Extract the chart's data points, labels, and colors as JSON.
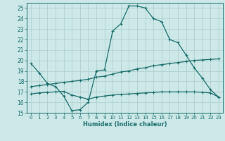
{
  "title": "",
  "xlabel": "Humidex (Indice chaleur)",
  "ylabel": "",
  "bg_color": "#cce8e8",
  "grid_color": "#aacccc",
  "line_color": "#1a6b6b",
  "xlim": [
    -0.5,
    23.5
  ],
  "ylim": [
    15,
    25.5
  ],
  "yticks": [
    15,
    16,
    17,
    18,
    19,
    20,
    21,
    22,
    23,
    24,
    25
  ],
  "xticks": [
    0,
    1,
    2,
    3,
    4,
    5,
    6,
    7,
    8,
    9,
    10,
    11,
    12,
    13,
    14,
    15,
    16,
    17,
    18,
    19,
    20,
    21,
    22,
    23
  ],
  "line1_x": [
    0,
    1,
    2,
    3,
    4,
    5,
    6,
    7,
    8,
    9,
    10,
    11,
    12,
    13,
    14,
    15,
    16,
    17,
    18,
    19,
    20,
    21,
    22,
    23
  ],
  "line1_y": [
    19.7,
    18.8,
    17.8,
    17.5,
    16.6,
    15.2,
    15.3,
    16.0,
    19.0,
    19.1,
    22.8,
    23.5,
    25.2,
    25.2,
    25.0,
    24.0,
    23.7,
    22.0,
    21.7,
    20.5,
    19.3,
    18.3,
    17.2,
    16.5
  ],
  "line2_x": [
    0,
    1,
    2,
    3,
    4,
    5,
    6,
    7,
    8,
    9,
    10,
    11,
    12,
    13,
    14,
    15,
    16,
    17,
    18,
    19,
    20,
    21,
    22,
    23
  ],
  "line2_y": [
    17.5,
    17.6,
    17.7,
    17.8,
    17.9,
    18.0,
    18.1,
    18.2,
    18.4,
    18.5,
    18.7,
    18.9,
    19.0,
    19.2,
    19.3,
    19.5,
    19.6,
    19.7,
    19.8,
    19.9,
    20.0,
    20.05,
    20.1,
    20.15
  ],
  "line3_x": [
    0,
    1,
    2,
    3,
    4,
    5,
    6,
    7,
    8,
    9,
    10,
    11,
    12,
    13,
    14,
    15,
    16,
    17,
    18,
    19,
    20,
    21,
    22,
    23
  ],
  "line3_y": [
    16.8,
    16.9,
    16.95,
    17.0,
    17.05,
    16.7,
    16.5,
    16.3,
    16.5,
    16.6,
    16.7,
    16.75,
    16.8,
    16.85,
    16.9,
    16.95,
    17.0,
    17.0,
    17.0,
    17.0,
    17.0,
    16.95,
    16.9,
    16.5
  ]
}
